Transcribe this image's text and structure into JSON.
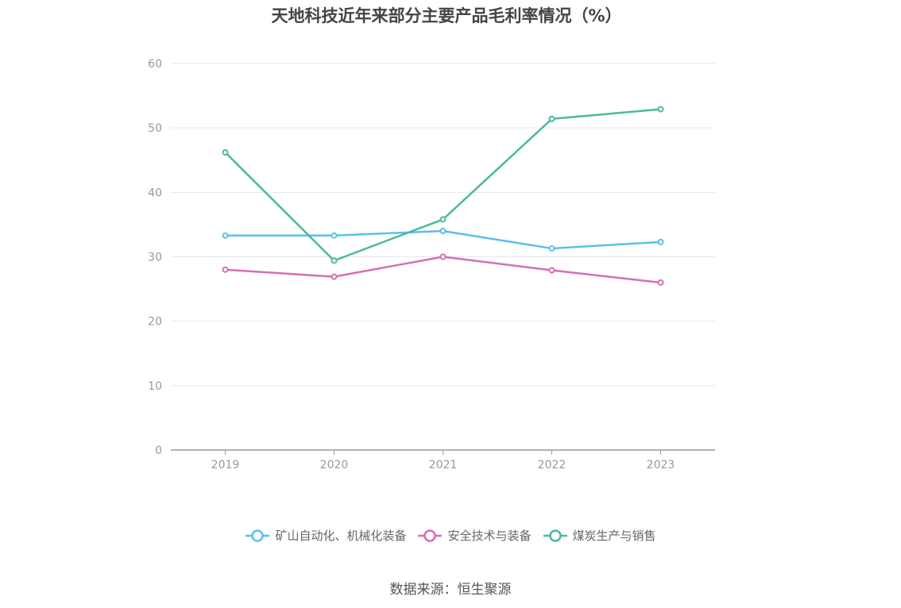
{
  "chart_data": {
    "type": "line",
    "title": "天地科技近年来部分主要产品毛利率情况（%）",
    "categories": [
      "2019",
      "2020",
      "2021",
      "2022",
      "2023"
    ],
    "series": [
      {
        "name": "矿山自动化、机械化装备",
        "color": "#5bc0eb",
        "values": [
          33.3,
          33.3,
          34.0,
          31.3,
          32.3
        ]
      },
      {
        "name": "安全技术与装备",
        "color": "#d56fb3",
        "values": [
          28.0,
          26.9,
          30.0,
          27.9,
          26.0
        ]
      },
      {
        "name": "煤炭生产与销售",
        "color": "#4cb89f",
        "values": [
          46.2,
          29.4,
          35.8,
          51.4,
          52.9
        ]
      }
    ],
    "ylim": [
      0,
      60
    ],
    "yticks": [
      0,
      10,
      20,
      30,
      40,
      50,
      60
    ],
    "grid": true,
    "legend_position": "bottom"
  },
  "source_note": "数据来源：恒生聚源"
}
